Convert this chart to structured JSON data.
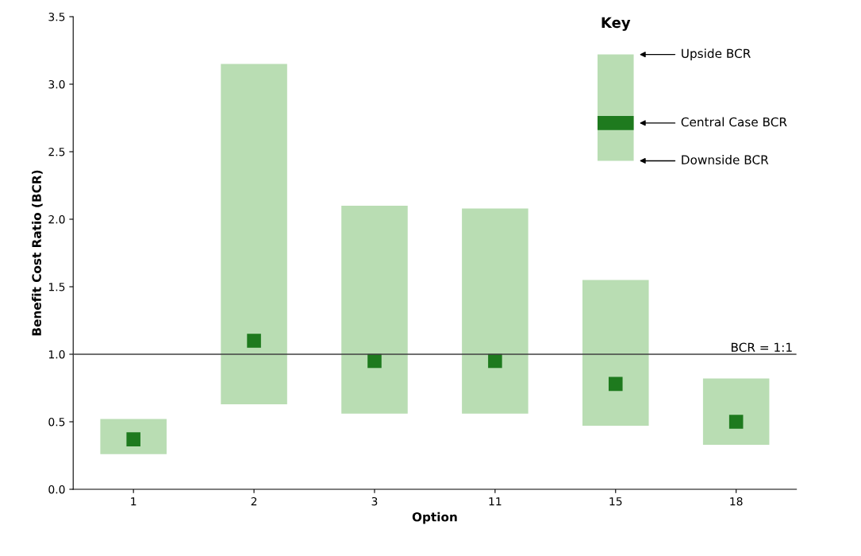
{
  "chart_data": {
    "type": "bar",
    "xlabel": "Option",
    "ylabel": "Benefit Cost Ratio (BCR)",
    "categories": [
      "1",
      "2",
      "3",
      "11",
      "15",
      "18"
    ],
    "series": [
      {
        "color": "#b9ddb3",
        "base": [
          0.26,
          0.63,
          0.56,
          0.56,
          0.47,
          0.33
        ],
        "values": [
          0.26,
          2.52,
          1.54,
          1.52,
          1.08,
          0.49
        ]
      },
      {
        "type": "scatter",
        "color": "#1e7a1e",
        "marker": "square",
        "values": [
          0.37,
          1.1,
          0.95,
          0.95,
          0.78,
          0.5
        ]
      }
    ],
    "ylim": [
      0,
      3.5
    ],
    "yticks": [
      {
        "value": 0,
        "label": "0.0"
      },
      {
        "value": 0.5,
        "label": "0.5"
      },
      {
        "value": 1,
        "label": "1.0"
      },
      {
        "value": 1.5,
        "label": "1.5"
      },
      {
        "value": 2,
        "label": "2.0"
      },
      {
        "value": 2.5,
        "label": "2.5"
      },
      {
        "value": 3,
        "label": "3.0"
      },
      {
        "value": 3.5,
        "label": "3.5"
      }
    ],
    "ref_lines": [
      {
        "axis": "y",
        "value": 1,
        "label": "BCR = 1:1",
        "color": "#404040"
      }
    ],
    "annotations": [
      "Key",
      "Upside BCR",
      "Central Case BCR",
      "Downside BCR"
    ],
    "grid": false
  }
}
